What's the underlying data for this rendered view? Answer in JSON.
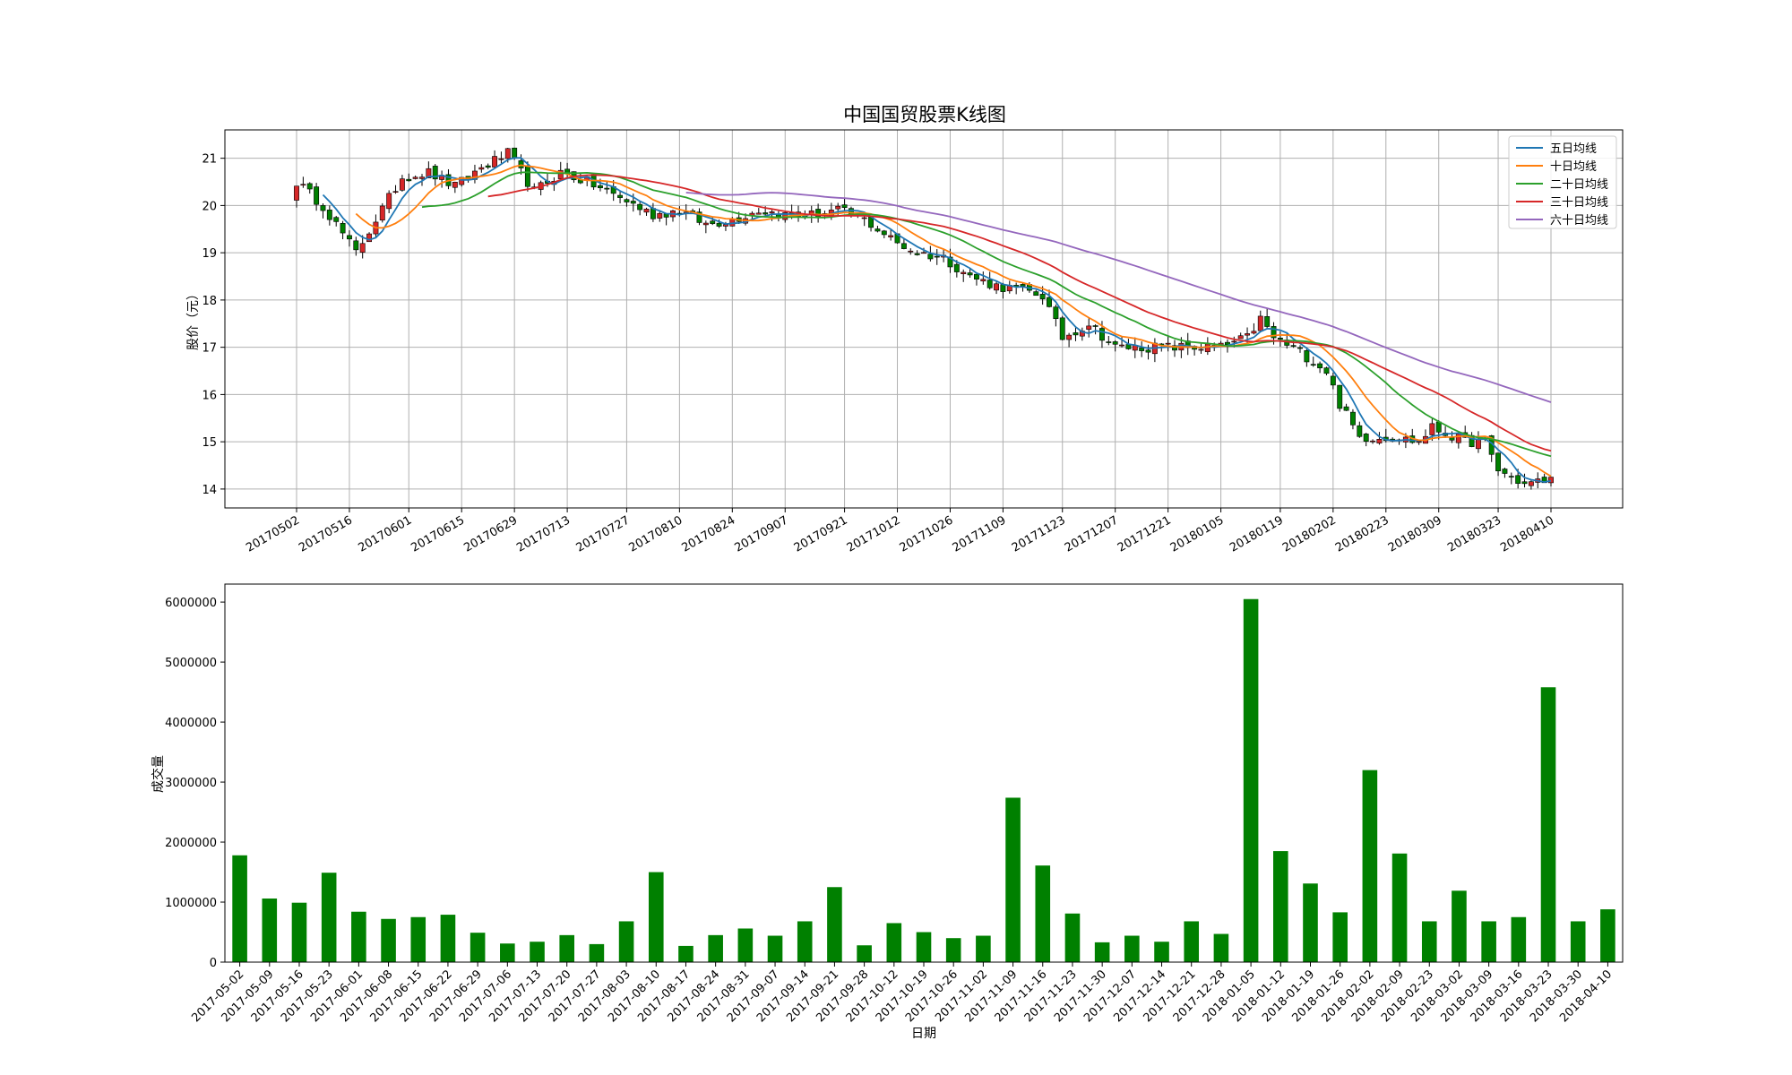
{
  "chart_data": [
    {
      "type": "candlestick",
      "title": "中国国贸股票K线图",
      "ylabel": "股价（元）",
      "ylim": [
        13.6,
        21.6
      ],
      "yticks": [
        14,
        15,
        16,
        17,
        18,
        19,
        20,
        21
      ],
      "x_tick_labels": [
        "20170502",
        "20170516",
        "20170601",
        "20170615",
        "20170629",
        "20170713",
        "20170727",
        "20170810",
        "20170824",
        "20170907",
        "20170921",
        "20171012",
        "20171026",
        "20171109",
        "20171123",
        "20171207",
        "20171221",
        "20180105",
        "20180119",
        "20180202",
        "20180223",
        "20180309",
        "20180323",
        "20180410"
      ],
      "grid": true,
      "legend_position": "top-right",
      "up_color": "#d62728",
      "down_color": "#008000",
      "price_path": [
        [
          0,
          20.5
        ],
        [
          4,
          20.0
        ],
        [
          9,
          19.0
        ],
        [
          12,
          19.7
        ],
        [
          16,
          20.6
        ],
        [
          20,
          20.7
        ],
        [
          24,
          20.4
        ],
        [
          28,
          20.8
        ],
        [
          32,
          21.1
        ],
        [
          36,
          20.3
        ],
        [
          40,
          20.7
        ],
        [
          44,
          20.5
        ],
        [
          50,
          20.1
        ],
        [
          54,
          19.8
        ],
        [
          58,
          19.9
        ],
        [
          62,
          19.6
        ],
        [
          66,
          19.7
        ],
        [
          70,
          19.9
        ],
        [
          74,
          19.8
        ],
        [
          78,
          19.8
        ],
        [
          82,
          19.9
        ],
        [
          86,
          19.7
        ],
        [
          91,
          19.2
        ],
        [
          94,
          19.0
        ],
        [
          98,
          18.9
        ],
        [
          102,
          18.5
        ],
        [
          106,
          18.3
        ],
        [
          110,
          18.2
        ],
        [
          113,
          18.1
        ],
        [
          116,
          17.2
        ],
        [
          120,
          17.5
        ],
        [
          124,
          17.0
        ],
        [
          128,
          17.0
        ],
        [
          132,
          17.0
        ],
        [
          136,
          17.0
        ],
        [
          140,
          17.0
        ],
        [
          144,
          17.2
        ],
        [
          146,
          17.6
        ],
        [
          148,
          17.2
        ],
        [
          152,
          16.9
        ],
        [
          156,
          16.5
        ],
        [
          158,
          15.8
        ],
        [
          161,
          15.1
        ],
        [
          166,
          15.1
        ],
        [
          170,
          15.0
        ],
        [
          172,
          15.3
        ],
        [
          177,
          15.0
        ],
        [
          180,
          15.0
        ],
        [
          182,
          14.4
        ],
        [
          186,
          14.1
        ],
        [
          190,
          14.2
        ]
      ],
      "series": [
        {
          "name": "五日均线",
          "color": "#1f77b4",
          "window": 5
        },
        {
          "name": "十日均线",
          "color": "#ff7f0e",
          "window": 10
        },
        {
          "name": "二十日均线",
          "color": "#2ca02c",
          "window": 20
        },
        {
          "name": "三十日均线",
          "color": "#d62728",
          "window": 30
        },
        {
          "name": "六十日均线",
          "color": "#9467bd",
          "window": 60
        }
      ]
    },
    {
      "type": "bar",
      "xlabel": "日期",
      "ylabel": "成交量",
      "ylim": [
        0,
        6300000
      ],
      "yticks": [
        0,
        1000000,
        2000000,
        3000000,
        4000000,
        5000000,
        6000000
      ],
      "bar_color": "#008000",
      "categories": [
        "2017-05-02",
        "2017-05-09",
        "2017-05-16",
        "2017-05-23",
        "2017-06-01",
        "2017-06-08",
        "2017-06-15",
        "2017-06-22",
        "2017-06-29",
        "2017-07-06",
        "2017-07-13",
        "2017-07-20",
        "2017-07-27",
        "2017-08-03",
        "2017-08-10",
        "2017-08-17",
        "2017-08-24",
        "2017-08-31",
        "2017-09-07",
        "2017-09-14",
        "2017-09-21",
        "2017-09-28",
        "2017-10-12",
        "2017-10-19",
        "2017-10-26",
        "2017-11-02",
        "2017-11-09",
        "2017-11-16",
        "2017-11-23",
        "2017-11-30",
        "2017-12-07",
        "2017-12-14",
        "2017-12-21",
        "2017-12-28",
        "2018-01-05",
        "2018-01-12",
        "2018-01-19",
        "2018-01-26",
        "2018-02-02",
        "2018-02-09",
        "2018-02-23",
        "2018-03-02",
        "2018-03-09",
        "2018-03-16",
        "2018-03-23",
        "2018-03-30",
        "2018-04-10"
      ],
      "values": [
        1780000,
        1060000,
        990000,
        1490000,
        840000,
        720000,
        750000,
        790000,
        490000,
        310000,
        340000,
        450000,
        300000,
        680000,
        1500000,
        270000,
        450000,
        560000,
        440000,
        680000,
        1250000,
        280000,
        650000,
        500000,
        400000,
        440000,
        2740000,
        1610000,
        810000,
        330000,
        440000,
        340000,
        680000,
        470000,
        6050000,
        1850000,
        1310000,
        830000,
        3200000,
        1810000,
        680000,
        1190000,
        680000,
        750000,
        4580000,
        680000,
        880000
      ]
    }
  ]
}
